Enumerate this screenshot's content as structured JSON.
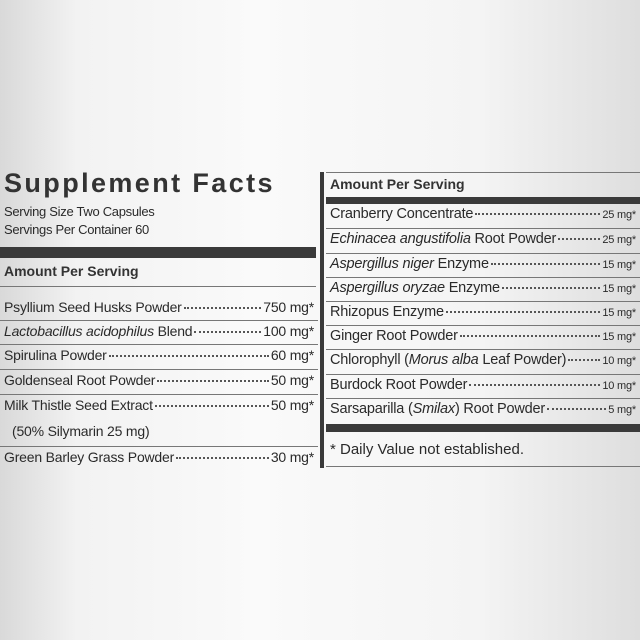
{
  "left": {
    "title": "Supplement Facts",
    "serving_size": "Serving Size Two Capsules",
    "servings_per_container": "Servings Per Container 60",
    "amount_header": "Amount Per Serving",
    "rows": [
      {
        "name": [
          {
            "text": "Psyllium Seed Husks Powder"
          }
        ],
        "amount": "750 mg*"
      },
      {
        "name": [
          {
            "text": "Lactobacillus acidophilus",
            "italic": true
          },
          {
            "text": " Blend"
          }
        ],
        "amount": "100 mg*"
      },
      {
        "name": [
          {
            "text": "Spirulina Powder"
          }
        ],
        "amount": "60 mg*"
      },
      {
        "name": [
          {
            "text": "Goldenseal Root Powder"
          }
        ],
        "amount": "50 mg*"
      },
      {
        "name": [
          {
            "text": "Milk Thistle Seed Extract"
          }
        ],
        "amount": "50 mg*",
        "detail": "(50% Silymarin 25 mg)"
      },
      {
        "name": [
          {
            "text": "Green Barley Grass Powder"
          }
        ],
        "amount": "30 mg*"
      }
    ]
  },
  "right": {
    "amount_header": "Amount Per Serving",
    "rows": [
      {
        "name": [
          {
            "text": "Cranberry Concentrate"
          }
        ],
        "amount": "25 mg*"
      },
      {
        "name": [
          {
            "text": "Echinacea angustifolia",
            "italic": true
          },
          {
            "text": " Root Powder"
          }
        ],
        "amount": "25 mg*"
      },
      {
        "name": [
          {
            "text": "Aspergillus niger",
            "italic": true
          },
          {
            "text": " Enzyme"
          }
        ],
        "amount": "15 mg*"
      },
      {
        "name": [
          {
            "text": "Aspergillus oryzae",
            "italic": true
          },
          {
            "text": " Enzyme"
          }
        ],
        "amount": "15 mg*"
      },
      {
        "name": [
          {
            "text": "Rhizopus Enzyme"
          }
        ],
        "amount": "15 mg*"
      },
      {
        "name": [
          {
            "text": "Ginger Root Powder"
          }
        ],
        "amount": "15 mg*"
      },
      {
        "name": [
          {
            "text": "Chlorophyll ("
          },
          {
            "text": "Morus alba",
            "italic": true
          },
          {
            "text": " Leaf Powder)"
          }
        ],
        "amount": "10 mg*"
      },
      {
        "name": [
          {
            "text": "Burdock Root Powder"
          }
        ],
        "amount": "10 mg*"
      },
      {
        "name": [
          {
            "text": "Sarsaparilla ("
          },
          {
            "text": "Smilax",
            "italic": true
          },
          {
            "text": ") Root Powder"
          }
        ],
        "amount": "5 mg*"
      }
    ],
    "footnote": "* Daily Value not established."
  }
}
